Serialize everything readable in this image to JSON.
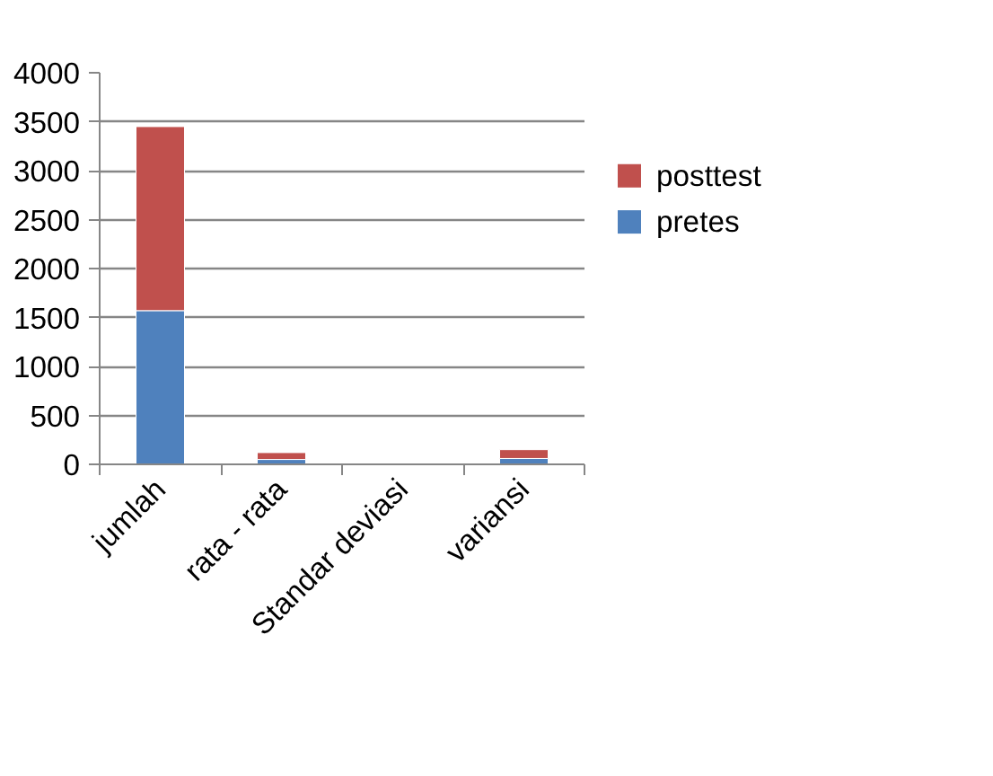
{
  "chart_data": {
    "type": "bar",
    "stacked": true,
    "categories": [
      "jumlah",
      "rata - rata",
      "Standar deviasi",
      "variansi"
    ],
    "series": [
      {
        "name": "pretes",
        "color": "#4f81bd",
        "values": [
          1570,
          50,
          null,
          60
        ]
      },
      {
        "name": "posttest",
        "color": "#c0504d",
        "values": [
          1880,
          70,
          10,
          90
        ]
      }
    ],
    "ylim": [
      0,
      4000
    ],
    "yticks": [
      0,
      500,
      1000,
      1500,
      2000,
      2500,
      3000,
      3500,
      4000
    ],
    "grid": "y",
    "legend": "right"
  }
}
